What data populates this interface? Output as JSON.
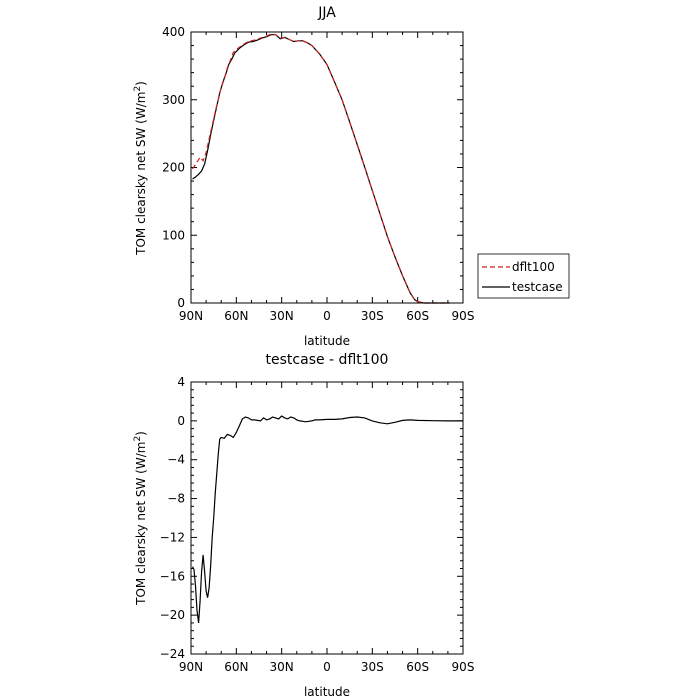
{
  "chart_data": [
    {
      "type": "line",
      "title": "JJA",
      "xlabel": "latitude",
      "ylabel": "TOM clearsky net SW (W/m²)",
      "ylabel_parts": [
        "TOM clearsky net SW (W/m",
        "2",
        ")"
      ],
      "xlim": [
        90,
        -90
      ],
      "ylim": [
        0,
        400
      ],
      "x_ticks": [
        90,
        60,
        30,
        0,
        -30,
        -60,
        -90
      ],
      "x_tick_labels": [
        "90N",
        "60N",
        "30N",
        "0",
        "30S",
        "60S",
        "90S"
      ],
      "y_ticks": [
        0,
        100,
        200,
        300,
        400
      ],
      "y_tick_labels": [
        "0",
        "100",
        "200",
        "300",
        "400"
      ],
      "legend": {
        "position": "right",
        "entries": [
          "dflt100",
          "testcase"
        ]
      },
      "colors": {
        "dflt100": "#cc2222",
        "testcase": "#000000"
      },
      "series": [
        {
          "name": "dflt100",
          "style": "dashed",
          "x": [
            89,
            86,
            84,
            82,
            80,
            78,
            76,
            74,
            72,
            70,
            68,
            66,
            64,
            62,
            60,
            56,
            52,
            48,
            44,
            40,
            37,
            34,
            31,
            28,
            25,
            22,
            19,
            16,
            13,
            10,
            5,
            0,
            -5,
            -10,
            -15,
            -20,
            -25,
            -30,
            -35,
            -40,
            -45,
            -50,
            -55,
            -58,
            -60,
            -62,
            -64,
            -66,
            -68,
            -70,
            -72,
            -75,
            -78,
            -81
          ],
          "y": [
            198,
            208,
            215,
            210,
            222,
            242,
            262,
            282,
            300,
            318,
            330,
            347,
            358,
            370,
            374,
            381,
            386,
            388,
            391,
            394,
            397,
            396,
            391,
            392,
            389,
            386,
            387,
            387,
            384,
            380,
            368,
            352,
            326,
            300,
            267,
            234,
            200,
            166,
            132,
            98,
            68,
            40,
            15,
            5,
            2,
            1,
            0,
            0,
            0,
            0,
            0,
            0,
            0,
            0
          ]
        },
        {
          "name": "testcase",
          "style": "solid",
          "x": [
            89,
            87,
            85,
            83,
            81,
            79,
            77,
            75,
            73,
            71,
            69,
            67,
            65,
            63,
            61,
            58,
            55,
            52,
            49,
            46,
            43,
            40,
            37,
            34,
            31,
            28,
            25,
            22,
            19,
            16,
            13,
            10,
            5,
            0,
            -5,
            -10,
            -15,
            -20,
            -25,
            -30,
            -35,
            -40,
            -45,
            -50,
            -55,
            -58,
            -60,
            -62,
            -64,
            -66,
            -68,
            -70,
            -72,
            -75,
            -78,
            -81
          ],
          "y": [
            183,
            186,
            190,
            195,
            205,
            225,
            248,
            270,
            290,
            310,
            325,
            338,
            352,
            360,
            369,
            376,
            381,
            385,
            386,
            388,
            391,
            393,
            396,
            396,
            390,
            392,
            389,
            386,
            387,
            387,
            384,
            380,
            368,
            352,
            326,
            300,
            267,
            234,
            200,
            166,
            132,
            98,
            68,
            40,
            15,
            5,
            2,
            1,
            0,
            0,
            0,
            0,
            0,
            0,
            0,
            0
          ]
        }
      ]
    },
    {
      "type": "line",
      "title": "testcase - dflt100",
      "xlabel": "latitude",
      "ylabel": "TOM clearsky net SW (W/m²)",
      "ylabel_parts": [
        "TOM clearsky net SW (W/m",
        "2",
        ")"
      ],
      "xlim": [
        90,
        -90
      ],
      "ylim": [
        -24,
        4
      ],
      "x_ticks": [
        90,
        60,
        30,
        0,
        -30,
        -60,
        -90
      ],
      "x_tick_labels": [
        "90N",
        "60N",
        "30N",
        "0",
        "30S",
        "60S",
        "90S"
      ],
      "y_ticks": [
        -24,
        -20,
        -16,
        -12,
        -8,
        -4,
        0,
        4
      ],
      "y_tick_labels": [
        "−24",
        "−20",
        "−16",
        "−12",
        "−8",
        "−4",
        "0",
        "4"
      ],
      "colors": {
        "diff": "#000000"
      },
      "series": [
        {
          "style": "solid",
          "x": [
            89,
            88,
            87,
            86,
            85,
            84,
            83,
            82,
            81,
            80,
            79,
            78,
            77,
            76,
            75,
            74,
            73,
            72,
            71,
            70,
            68,
            66,
            64,
            62,
            60,
            58,
            56,
            54,
            52,
            50,
            48,
            46,
            44,
            42,
            40,
            38,
            36,
            34,
            32,
            30,
            28,
            26,
            24,
            22,
            20,
            18,
            16,
            14,
            12,
            10,
            8,
            5,
            0,
            -5,
            -10,
            -15,
            -20,
            -25,
            -30,
            -35,
            -40,
            -45,
            -50,
            -55,
            -60,
            -70,
            -80,
            -90
          ],
          "y": [
            -15,
            -15.3,
            -17,
            -19.5,
            -20.8,
            -18.5,
            -15.5,
            -13.8,
            -15.5,
            -17.5,
            -18.2,
            -17.2,
            -15,
            -12,
            -10,
            -7.5,
            -5.5,
            -3.5,
            -1.9,
            -1.7,
            -1.8,
            -1.4,
            -1.5,
            -1.7,
            -1.2,
            -0.5,
            0.2,
            0.4,
            0.3,
            0.1,
            0.1,
            0.05,
            0.0,
            0.3,
            0.1,
            0.2,
            0.4,
            0.3,
            0.2,
            0.5,
            0.3,
            0.2,
            0.4,
            0.3,
            0.1,
            0.0,
            -0.05,
            -0.1,
            -0.05,
            0.0,
            0.1,
            0.1,
            0.15,
            0.15,
            0.2,
            0.35,
            0.4,
            0.3,
            0.0,
            -0.2,
            -0.3,
            -0.15,
            0.05,
            0.1,
            0.05,
            0.02,
            0.0,
            0.0
          ]
        }
      ]
    }
  ]
}
